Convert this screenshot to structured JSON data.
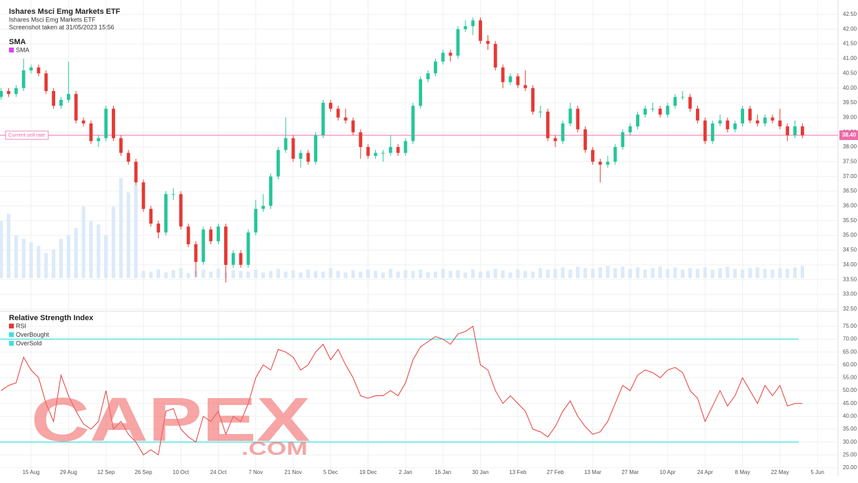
{
  "header": {
    "title": "Ishares Msci Emg Markets ETF",
    "subtitle": "Ishares Msci Emg Markets ETF",
    "note": "Screenshot taken at 31/05/2023 15:56"
  },
  "watermark": {
    "text": "CAPEX",
    "sub": ".COM"
  },
  "chart_data": [
    {
      "type": "candlestick",
      "title": "SMA",
      "indicators": [
        {
          "name": "SMA",
          "color": "#e040fb"
        }
      ],
      "up_color": "#26c69a",
      "down_color": "#e53935",
      "volume_color": "#dceafa",
      "grid": true,
      "xlim": [
        1.7,
        225.5
      ],
      "ylim": [
        32.45,
        42.99
      ],
      "yticks": [
        {
          "value": 32.5,
          "label": "32.50"
        },
        {
          "value": 33,
          "label": "33.00"
        },
        {
          "value": 33.5,
          "label": "33.50"
        },
        {
          "value": 34,
          "label": "34.00"
        },
        {
          "value": 34.5,
          "label": "34.50"
        },
        {
          "value": 35,
          "label": "35.00"
        },
        {
          "value": 35.5,
          "label": "35.50"
        },
        {
          "value": 36,
          "label": "36.00"
        },
        {
          "value": 36.5,
          "label": "36.50"
        },
        {
          "value": 37,
          "label": "37.00"
        },
        {
          "value": 37.5,
          "label": "37.50"
        },
        {
          "value": 38,
          "label": "38.00"
        },
        {
          "value": 38.5,
          "label": "38.50"
        },
        {
          "value": 39,
          "label": "39.00"
        },
        {
          "value": 39.5,
          "label": "39.50"
        },
        {
          "value": 40,
          "label": "40.00"
        },
        {
          "value": 40.5,
          "label": "40.50"
        },
        {
          "value": 41,
          "label": "41.00"
        },
        {
          "value": 41.5,
          "label": "41.50"
        },
        {
          "value": 42,
          "label": "42.00"
        },
        {
          "value": 42.5,
          "label": "42.50"
        }
      ],
      "reference": {
        "label": "Current sell rate",
        "value": 38.4,
        "value_label": "38.40",
        "color": "#f06ba8"
      },
      "x": [
        2,
        4,
        6,
        8,
        10,
        12,
        14,
        16,
        18,
        20,
        22,
        24,
        26,
        28,
        30,
        32,
        34,
        36,
        38,
        40,
        42,
        44,
        46,
        48,
        50,
        52,
        54,
        56,
        58,
        60,
        62,
        64,
        66,
        68,
        70,
        72,
        74,
        76,
        78,
        80,
        82,
        84,
        86,
        88,
        90,
        92,
        94,
        96,
        98,
        100,
        102,
        104,
        106,
        108,
        110,
        112,
        114,
        116,
        118,
        120,
        122,
        124,
        126,
        128,
        130,
        132,
        134,
        136,
        138,
        140,
        142,
        144,
        146,
        148,
        150,
        152,
        154,
        156,
        158,
        160,
        162,
        164,
        166,
        168,
        170,
        172,
        174,
        176,
        178,
        180,
        182,
        184,
        186,
        188,
        190,
        192,
        194,
        196,
        198,
        200,
        202,
        204,
        206,
        208,
        210,
        212,
        214,
        216
      ],
      "open": [
        39.7,
        39.9,
        39.8,
        40.0,
        40.6,
        40.7,
        40.5,
        39.9,
        39.4,
        39.6,
        39.8,
        38.9,
        38.8,
        38.2,
        38.3,
        39.3,
        38.3,
        37.8,
        37.5,
        36.8,
        35.9,
        35.4,
        35.1,
        36.4,
        36.4,
        35.3,
        34.7,
        34.1,
        35.2,
        34.8,
        35.3,
        34.0,
        34.4,
        34.0,
        35.1,
        35.9,
        36.0,
        37.0,
        37.9,
        38.3,
        37.6,
        37.8,
        37.5,
        38.4,
        39.5,
        39.3,
        39.0,
        38.9,
        38.5,
        38.0,
        37.7,
        37.8,
        37.8,
        38.0,
        37.8,
        38.2,
        39.4,
        40.3,
        40.5,
        40.9,
        41.2,
        41.1,
        42.0,
        42.1,
        42.3,
        41.6,
        41.5,
        40.7,
        40.2,
        40.4,
        40.1,
        40.0,
        39.2,
        39.2,
        38.3,
        38.2,
        38.8,
        39.3,
        38.6,
        37.9,
        37.5,
        37.4,
        37.5,
        38.0,
        38.5,
        38.7,
        39.1,
        39.3,
        39.3,
        39.1,
        39.4,
        39.7,
        39.7,
        39.3,
        38.9,
        38.2,
        38.8,
        38.9,
        38.6,
        38.8,
        39.3,
        38.9,
        38.8,
        39.0,
        38.9,
        38.7,
        38.4,
        38.7
      ],
      "high": [
        40.0,
        40.0,
        40.1,
        41.0,
        40.8,
        40.8,
        40.6,
        40.0,
        39.7,
        40.9,
        39.9,
        39.0,
        38.9,
        38.4,
        39.4,
        39.4,
        38.4,
        37.9,
        37.6,
        36.9,
        36.0,
        35.5,
        36.5,
        36.6,
        36.5,
        35.4,
        34.8,
        35.3,
        35.3,
        35.4,
        35.4,
        34.5,
        34.5,
        35.2,
        36.2,
        36.4,
        37.1,
        38.0,
        39.0,
        38.4,
        37.9,
        37.9,
        38.5,
        39.6,
        39.6,
        39.4,
        39.3,
        39.0,
        38.6,
        38.1,
        37.9,
        37.9,
        38.4,
        38.1,
        38.3,
        39.5,
        40.4,
        40.6,
        41.0,
        41.3,
        41.3,
        42.1,
        42.3,
        42.4,
        42.4,
        41.8,
        41.6,
        40.8,
        40.5,
        40.5,
        40.6,
        40.1,
        39.4,
        39.3,
        38.4,
        38.9,
        39.5,
        39.4,
        38.7,
        38.0,
        37.6,
        37.7,
        38.1,
        38.6,
        38.8,
        39.2,
        39.4,
        39.5,
        39.4,
        39.5,
        39.8,
        39.9,
        39.8,
        39.4,
        39.0,
        38.9,
        39.1,
        39.0,
        38.9,
        39.4,
        39.4,
        39.1,
        39.1,
        39.1,
        39.3,
        38.8,
        38.9,
        38.8
      ],
      "low": [
        39.6,
        39.7,
        39.7,
        39.9,
        40.5,
        40.4,
        39.8,
        39.3,
        39.3,
        39.5,
        38.8,
        38.7,
        38.1,
        38.0,
        38.2,
        38.2,
        37.7,
        37.4,
        36.7,
        35.8,
        35.3,
        34.9,
        35.0,
        36.2,
        35.2,
        34.6,
        33.6,
        34.0,
        34.7,
        34.7,
        33.4,
        33.9,
        33.9,
        33.9,
        35.0,
        35.8,
        35.9,
        36.9,
        37.8,
        37.5,
        37.3,
        37.4,
        37.4,
        38.3,
        39.2,
        38.9,
        38.8,
        38.4,
        37.6,
        37.6,
        37.6,
        37.5,
        37.7,
        37.7,
        37.7,
        38.1,
        39.3,
        40.2,
        40.4,
        40.8,
        40.9,
        41.0,
        41.9,
        41.8,
        41.5,
        41.3,
        40.6,
        40.0,
        40.1,
        40.0,
        39.9,
        39.1,
        39.0,
        38.2,
        38.0,
        38.1,
        38.7,
        38.5,
        37.8,
        37.4,
        36.8,
        37.3,
        37.4,
        37.9,
        38.4,
        38.6,
        39.0,
        39.2,
        39.0,
        39.0,
        39.3,
        39.6,
        39.2,
        38.8,
        38.1,
        38.1,
        38.7,
        38.5,
        38.5,
        38.7,
        38.8,
        38.7,
        38.7,
        38.8,
        38.6,
        38.2,
        38.3,
        38.3
      ],
      "close": [
        39.9,
        39.8,
        40.0,
        40.6,
        40.7,
        40.5,
        39.9,
        39.4,
        39.6,
        39.8,
        38.9,
        38.8,
        38.2,
        38.3,
        39.3,
        38.3,
        37.8,
        37.5,
        36.8,
        35.9,
        35.4,
        35.1,
        36.4,
        36.4,
        35.3,
        34.7,
        34.1,
        35.2,
        34.8,
        35.3,
        34.0,
        34.4,
        34.0,
        35.1,
        35.9,
        36.0,
        37.0,
        37.9,
        38.3,
        37.6,
        37.8,
        37.5,
        38.4,
        39.5,
        39.3,
        39.0,
        38.9,
        38.5,
        38.0,
        37.7,
        37.8,
        37.8,
        38.0,
        37.8,
        38.2,
        39.4,
        40.3,
        40.5,
        40.9,
        41.2,
        41.1,
        42.0,
        42.1,
        42.3,
        41.6,
        41.5,
        40.7,
        40.2,
        40.4,
        40.1,
        40.0,
        39.2,
        39.2,
        38.3,
        38.2,
        38.8,
        39.3,
        38.6,
        37.9,
        37.5,
        37.4,
        37.5,
        38.0,
        38.5,
        38.7,
        39.1,
        39.3,
        39.3,
        39.1,
        39.4,
        39.7,
        39.7,
        39.3,
        38.9,
        38.2,
        38.8,
        38.9,
        38.6,
        38.8,
        39.3,
        38.9,
        38.8,
        39.0,
        38.9,
        38.7,
        38.4,
        38.7,
        38.4
      ],
      "volume": [
        80,
        90,
        60,
        55,
        50,
        45,
        35,
        40,
        55,
        60,
        70,
        100,
        80,
        75,
        60,
        100,
        140,
        120,
        130,
        10,
        9,
        12,
        8,
        11,
        14,
        7,
        10,
        12,
        9,
        13,
        8,
        11,
        10,
        9,
        12,
        8,
        10,
        13,
        9,
        11,
        8,
        12,
        10,
        9,
        14,
        10,
        8,
        11,
        9,
        12,
        10,
        8,
        13,
        9,
        11,
        10,
        12,
        8,
        9,
        13,
        10,
        11,
        8,
        12,
        9,
        10,
        13,
        11,
        8,
        12,
        10,
        9,
        14,
        12,
        13,
        15,
        12,
        16,
        14,
        13,
        15,
        17,
        14,
        16,
        13,
        15,
        12,
        14,
        16,
        13,
        15,
        12,
        14,
        13,
        15,
        12,
        14,
        16,
        13,
        12,
        14,
        15,
        13,
        12,
        14,
        13,
        15,
        17
      ]
    },
    {
      "type": "line",
      "title": "Relative Strength Index",
      "grid": true,
      "xlim": [
        1.7,
        225.5
      ],
      "ylim": [
        17.3,
        80.6
      ],
      "xticks": [
        {
          "value": 10,
          "label": "15 Aug"
        },
        {
          "value": 20,
          "label": "29 Aug"
        },
        {
          "value": 30,
          "label": "12 Sep"
        },
        {
          "value": 40,
          "label": "26 Sep"
        },
        {
          "value": 50,
          "label": "10 Oct"
        },
        {
          "value": 60,
          "label": "24 Oct"
        },
        {
          "value": 70,
          "label": "7 Nov"
        },
        {
          "value": 80,
          "label": "21 Nov"
        },
        {
          "value": 90,
          "label": "5 Dec"
        },
        {
          "value": 100,
          "label": "19 Dec"
        },
        {
          "value": 110,
          "label": "2 Jan"
        },
        {
          "value": 120,
          "label": "16 Jan"
        },
        {
          "value": 130,
          "label": "30 Jan"
        },
        {
          "value": 140,
          "label": "13 Feb"
        },
        {
          "value": 150,
          "label": "27 Feb"
        },
        {
          "value": 160,
          "label": "13 Mar"
        },
        {
          "value": 170,
          "label": "27 Mar"
        },
        {
          "value": 180,
          "label": "10 Apr"
        },
        {
          "value": 190,
          "label": "24 Apr"
        },
        {
          "value": 200,
          "label": "8 May"
        },
        {
          "value": 210,
          "label": "22 May"
        },
        {
          "value": 220,
          "label": "5 Jun"
        }
      ],
      "yticks": [
        {
          "value": 20,
          "label": "20.00"
        },
        {
          "value": 25,
          "label": "25.00"
        },
        {
          "value": 30,
          "label": "30.00"
        },
        {
          "value": 35,
          "label": "35.00"
        },
        {
          "value": 40,
          "label": "40.00"
        },
        {
          "value": 45,
          "label": "45.00"
        },
        {
          "value": 50,
          "label": "50.00"
        },
        {
          "value": 55,
          "label": "55.00"
        },
        {
          "value": 60,
          "label": "60.00"
        },
        {
          "value": 65,
          "label": "65.00"
        },
        {
          "value": 70,
          "label": "70.00"
        },
        {
          "value": 75,
          "label": "75.00"
        }
      ],
      "thresholds": [
        {
          "name": "OverBought",
          "value": 70,
          "color": "#3fe0e0"
        },
        {
          "name": "OverSold",
          "value": 30,
          "color": "#3fe0e0"
        }
      ],
      "series": [
        {
          "name": "RSI",
          "color": "#e53935",
          "x": [
            2,
            4,
            6,
            8,
            10,
            12,
            14,
            16,
            18,
            20,
            22,
            24,
            26,
            28,
            30,
            32,
            34,
            36,
            38,
            40,
            42,
            44,
            46,
            48,
            50,
            52,
            54,
            56,
            58,
            60,
            62,
            64,
            66,
            68,
            70,
            72,
            74,
            76,
            78,
            80,
            82,
            84,
            86,
            88,
            90,
            92,
            94,
            96,
            98,
            100,
            102,
            104,
            106,
            108,
            110,
            112,
            114,
            116,
            118,
            120,
            122,
            124,
            126,
            128,
            130,
            132,
            134,
            136,
            138,
            140,
            142,
            144,
            146,
            148,
            150,
            152,
            154,
            156,
            158,
            160,
            162,
            164,
            166,
            168,
            170,
            172,
            174,
            176,
            178,
            180,
            182,
            184,
            186,
            188,
            190,
            192,
            194,
            196,
            198,
            200,
            202,
            204,
            206,
            208,
            210,
            212,
            214,
            216
          ],
          "values": [
            50,
            52,
            53,
            63,
            58,
            55,
            45,
            38,
            56,
            48,
            42,
            37,
            35,
            38,
            50,
            35,
            38,
            33,
            30,
            25,
            27,
            25,
            42,
            43,
            35,
            32,
            30,
            40,
            38,
            42,
            33,
            40,
            38,
            45,
            55,
            60,
            58,
            66,
            65,
            63,
            58,
            60,
            65,
            68,
            62,
            66,
            60,
            55,
            48,
            47,
            48,
            48,
            50,
            48,
            53,
            62,
            67,
            69,
            71,
            70,
            68,
            72,
            73,
            75,
            60,
            58,
            50,
            45,
            48,
            45,
            42,
            35,
            34,
            32,
            36,
            42,
            46,
            40,
            36,
            33,
            34,
            38,
            45,
            52,
            50,
            56,
            58,
            57,
            55,
            58,
            59,
            57,
            50,
            47,
            38,
            44,
            50,
            44,
            48,
            55,
            50,
            45,
            52,
            48,
            52,
            44,
            45,
            45
          ]
        }
      ]
    }
  ]
}
